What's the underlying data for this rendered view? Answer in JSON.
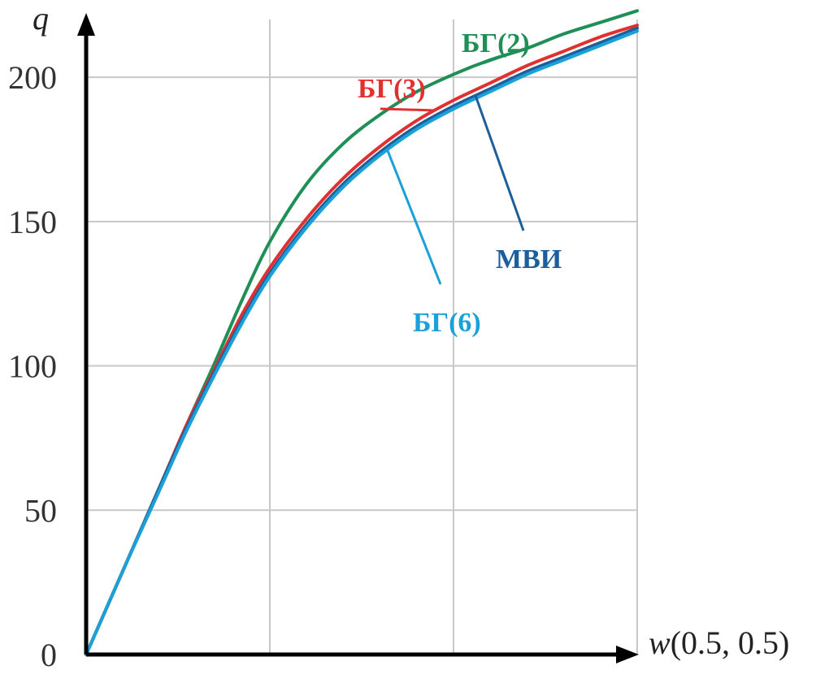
{
  "chart_data": {
    "type": "line",
    "xlabel": "w(0.5, 0.5)",
    "xlabel_italic_part": "w",
    "xlabel_rest": "(0.5, 0.5)",
    "ylabel": "q",
    "ylim": [
      0,
      220
    ],
    "ytick_labels": [
      "0",
      "50",
      "100",
      "150",
      "200"
    ],
    "yticks": [
      0,
      50,
      100,
      150,
      200
    ],
    "xlim": [
      0,
      3
    ],
    "xticks": [
      0,
      1,
      2,
      3
    ],
    "grid": true,
    "series": [
      {
        "name": "БГ(2)",
        "color": "#1f8f57",
        "x": [
          0,
          0.2,
          0.4,
          0.55,
          0.7,
          0.85,
          1.0,
          1.2,
          1.4,
          1.6,
          1.8,
          2.0,
          2.2,
          2.4,
          2.6,
          2.8,
          3.0
        ],
        "y": [
          0,
          29,
          58,
          80,
          101,
          123,
          143,
          163,
          177,
          187,
          195,
          201,
          206,
          210,
          215,
          219,
          223
        ]
      },
      {
        "name": "БГ(3)",
        "color": "#e03030",
        "x": [
          0,
          0.2,
          0.4,
          0.55,
          0.7,
          0.85,
          1.0,
          1.2,
          1.4,
          1.6,
          1.8,
          2.0,
          2.2,
          2.4,
          2.6,
          2.8,
          3.0
        ],
        "y": [
          0,
          29,
          58,
          80,
          99,
          118,
          134,
          151,
          165,
          176,
          185,
          192,
          198,
          204,
          209,
          214,
          218
        ]
      },
      {
        "name": "МВИ",
        "color": "#1d5f9c",
        "x": [
          0,
          0.2,
          0.4,
          0.55,
          0.7,
          0.85,
          1.0,
          1.2,
          1.4,
          1.6,
          1.8,
          2.0,
          2.2,
          2.4,
          2.6,
          2.8,
          3.0
        ],
        "y": [
          0,
          29,
          58,
          79,
          98,
          116,
          132,
          149,
          163,
          174,
          183,
          190,
          196,
          202,
          207,
          212,
          217
        ]
      },
      {
        "name": "БГ(6)",
        "color": "#1ba0d8",
        "x": [
          0,
          0.2,
          0.4,
          0.55,
          0.7,
          0.85,
          1.0,
          1.2,
          1.4,
          1.6,
          1.8,
          2.0,
          2.2,
          2.4,
          2.6,
          2.8,
          3.0
        ],
        "y": [
          0,
          29,
          57,
          78,
          97,
          115,
          131,
          148,
          162,
          173,
          182,
          189,
          195,
          201,
          206,
          211,
          216
        ]
      }
    ],
    "annotations": [
      {
        "text": "БГ(2)",
        "series": 0,
        "color": "#1f8f57"
      },
      {
        "text": "БГ(3)",
        "series": 1,
        "color": "#e03030"
      },
      {
        "text": "МВИ",
        "series": 2,
        "color": "#1d5f9c"
      },
      {
        "text": "БГ(6)",
        "series": 3,
        "color": "#1ba0d8"
      }
    ]
  }
}
